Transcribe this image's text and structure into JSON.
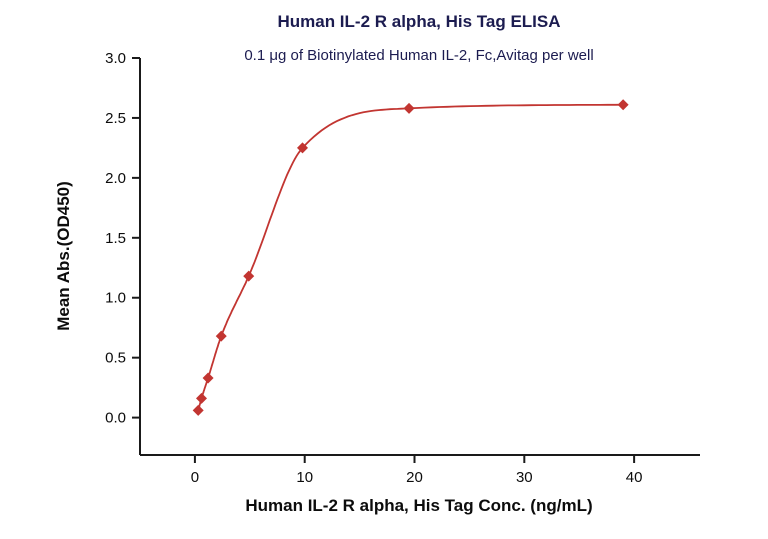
{
  "header": {
    "title": "Human IL-2 R alpha, His Tag ELISA",
    "subtitle": "0.1 μg of Biotinylated Human IL-2, Fc,Avitag per well"
  },
  "chart_data": {
    "type": "scatter",
    "title": "Human IL-2 R alpha, His Tag ELISA",
    "subtitle": "0.1 μg of Biotinylated Human IL-2, Fc,Avitag per well",
    "xlabel": "Human IL-2 R alpha, His Tag Conc. (ng/mL)",
    "ylabel": "Mean Abs.(OD450)",
    "points": [
      [
        0.3,
        0.06
      ],
      [
        0.6,
        0.16
      ],
      [
        1.2,
        0.33
      ],
      [
        2.4,
        0.68
      ],
      [
        4.9,
        1.18
      ],
      [
        9.8,
        2.25
      ],
      [
        19.5,
        2.58
      ],
      [
        39.0,
        2.61
      ]
    ],
    "curve": "4PL sigmoidal fit through points",
    "x_tick_values": [
      0,
      10,
      20,
      30,
      40
    ],
    "x_tick_labels": [
      "0",
      "10",
      "20",
      "30",
      "40"
    ],
    "y_tick_values": [
      0.0,
      0.5,
      1.0,
      1.5,
      2.0,
      2.5,
      3.0
    ],
    "y_tick_labels": [
      "0.0",
      "0.5",
      "1.0",
      "1.5",
      "2.0",
      "2.5",
      "3.0"
    ],
    "xlim": [
      -5,
      46
    ],
    "ylim": [
      -0.312,
      3.0
    ],
    "grid": false,
    "legend": null,
    "accent_color": "#c23531",
    "axis_color": "#1a1a1a",
    "tick_font_size": 15
  }
}
